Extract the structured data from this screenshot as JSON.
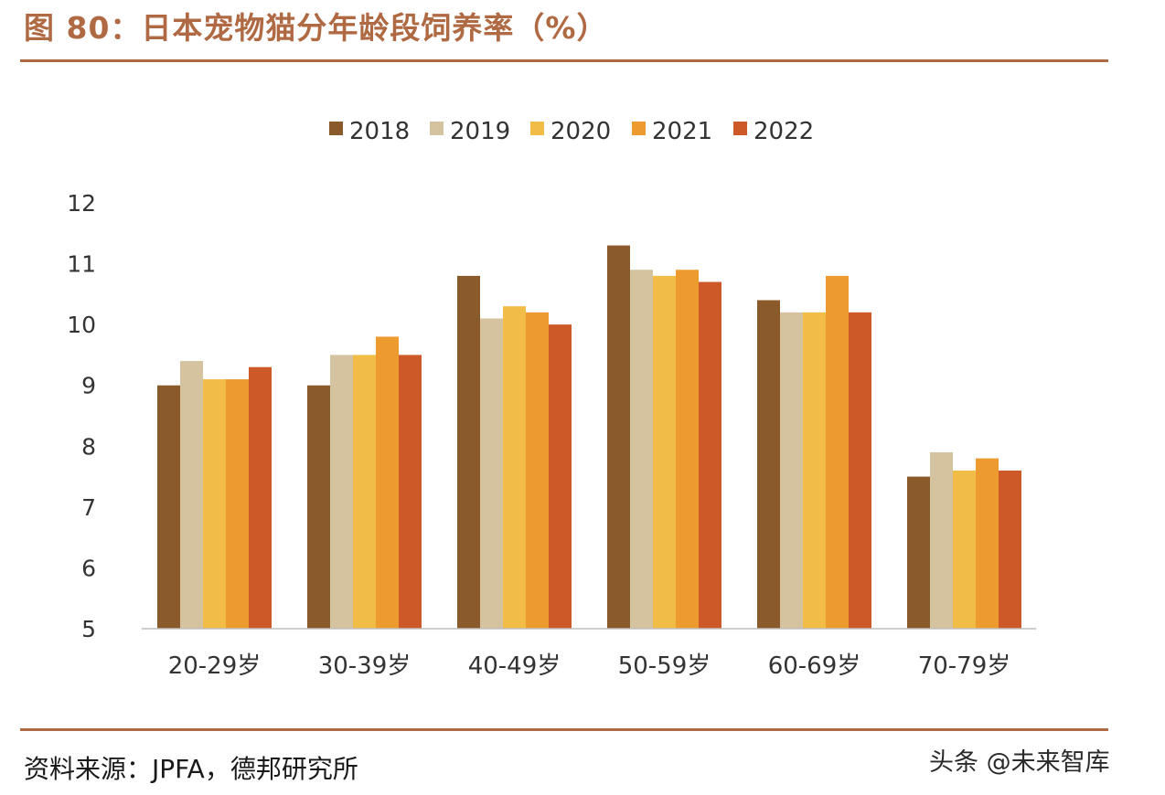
{
  "figure": {
    "title": "图 80：日本宠物猫分年龄段饲养率（%）",
    "source": "资料来源：JPFA，德邦研究所",
    "watermark": "头条 @未来智库"
  },
  "colors": {
    "accent": "#b06a43",
    "axis": "#bfbfbf",
    "tick_label": "#333333"
  },
  "chart_data": {
    "type": "bar",
    "title": "",
    "xlabel": "",
    "ylabel": "",
    "categories": [
      "20-29岁",
      "30-39岁",
      "40-49岁",
      "50-59岁",
      "60-69岁",
      "70-79岁"
    ],
    "ylim": [
      5,
      12
    ],
    "yticks": [
      5,
      6,
      7,
      8,
      9,
      10,
      11,
      12
    ],
    "grid": false,
    "legend_position": "top-center",
    "series": [
      {
        "name": "2018",
        "color": "#8a5a2b",
        "values": [
          9.0,
          9.0,
          10.8,
          11.3,
          10.4,
          7.5
        ]
      },
      {
        "name": "2019",
        "color": "#d5c3a0",
        "values": [
          9.4,
          9.5,
          10.1,
          10.9,
          10.2,
          7.9
        ]
      },
      {
        "name": "2020",
        "color": "#f2bd47",
        "values": [
          9.1,
          9.5,
          10.3,
          10.8,
          10.2,
          7.6
        ]
      },
      {
        "name": "2021",
        "color": "#ed9a2f",
        "values": [
          9.1,
          9.8,
          10.2,
          10.9,
          10.8,
          7.8
        ]
      },
      {
        "name": "2022",
        "color": "#cc5927",
        "values": [
          9.3,
          9.5,
          10.0,
          10.7,
          10.2,
          7.6
        ]
      }
    ]
  }
}
